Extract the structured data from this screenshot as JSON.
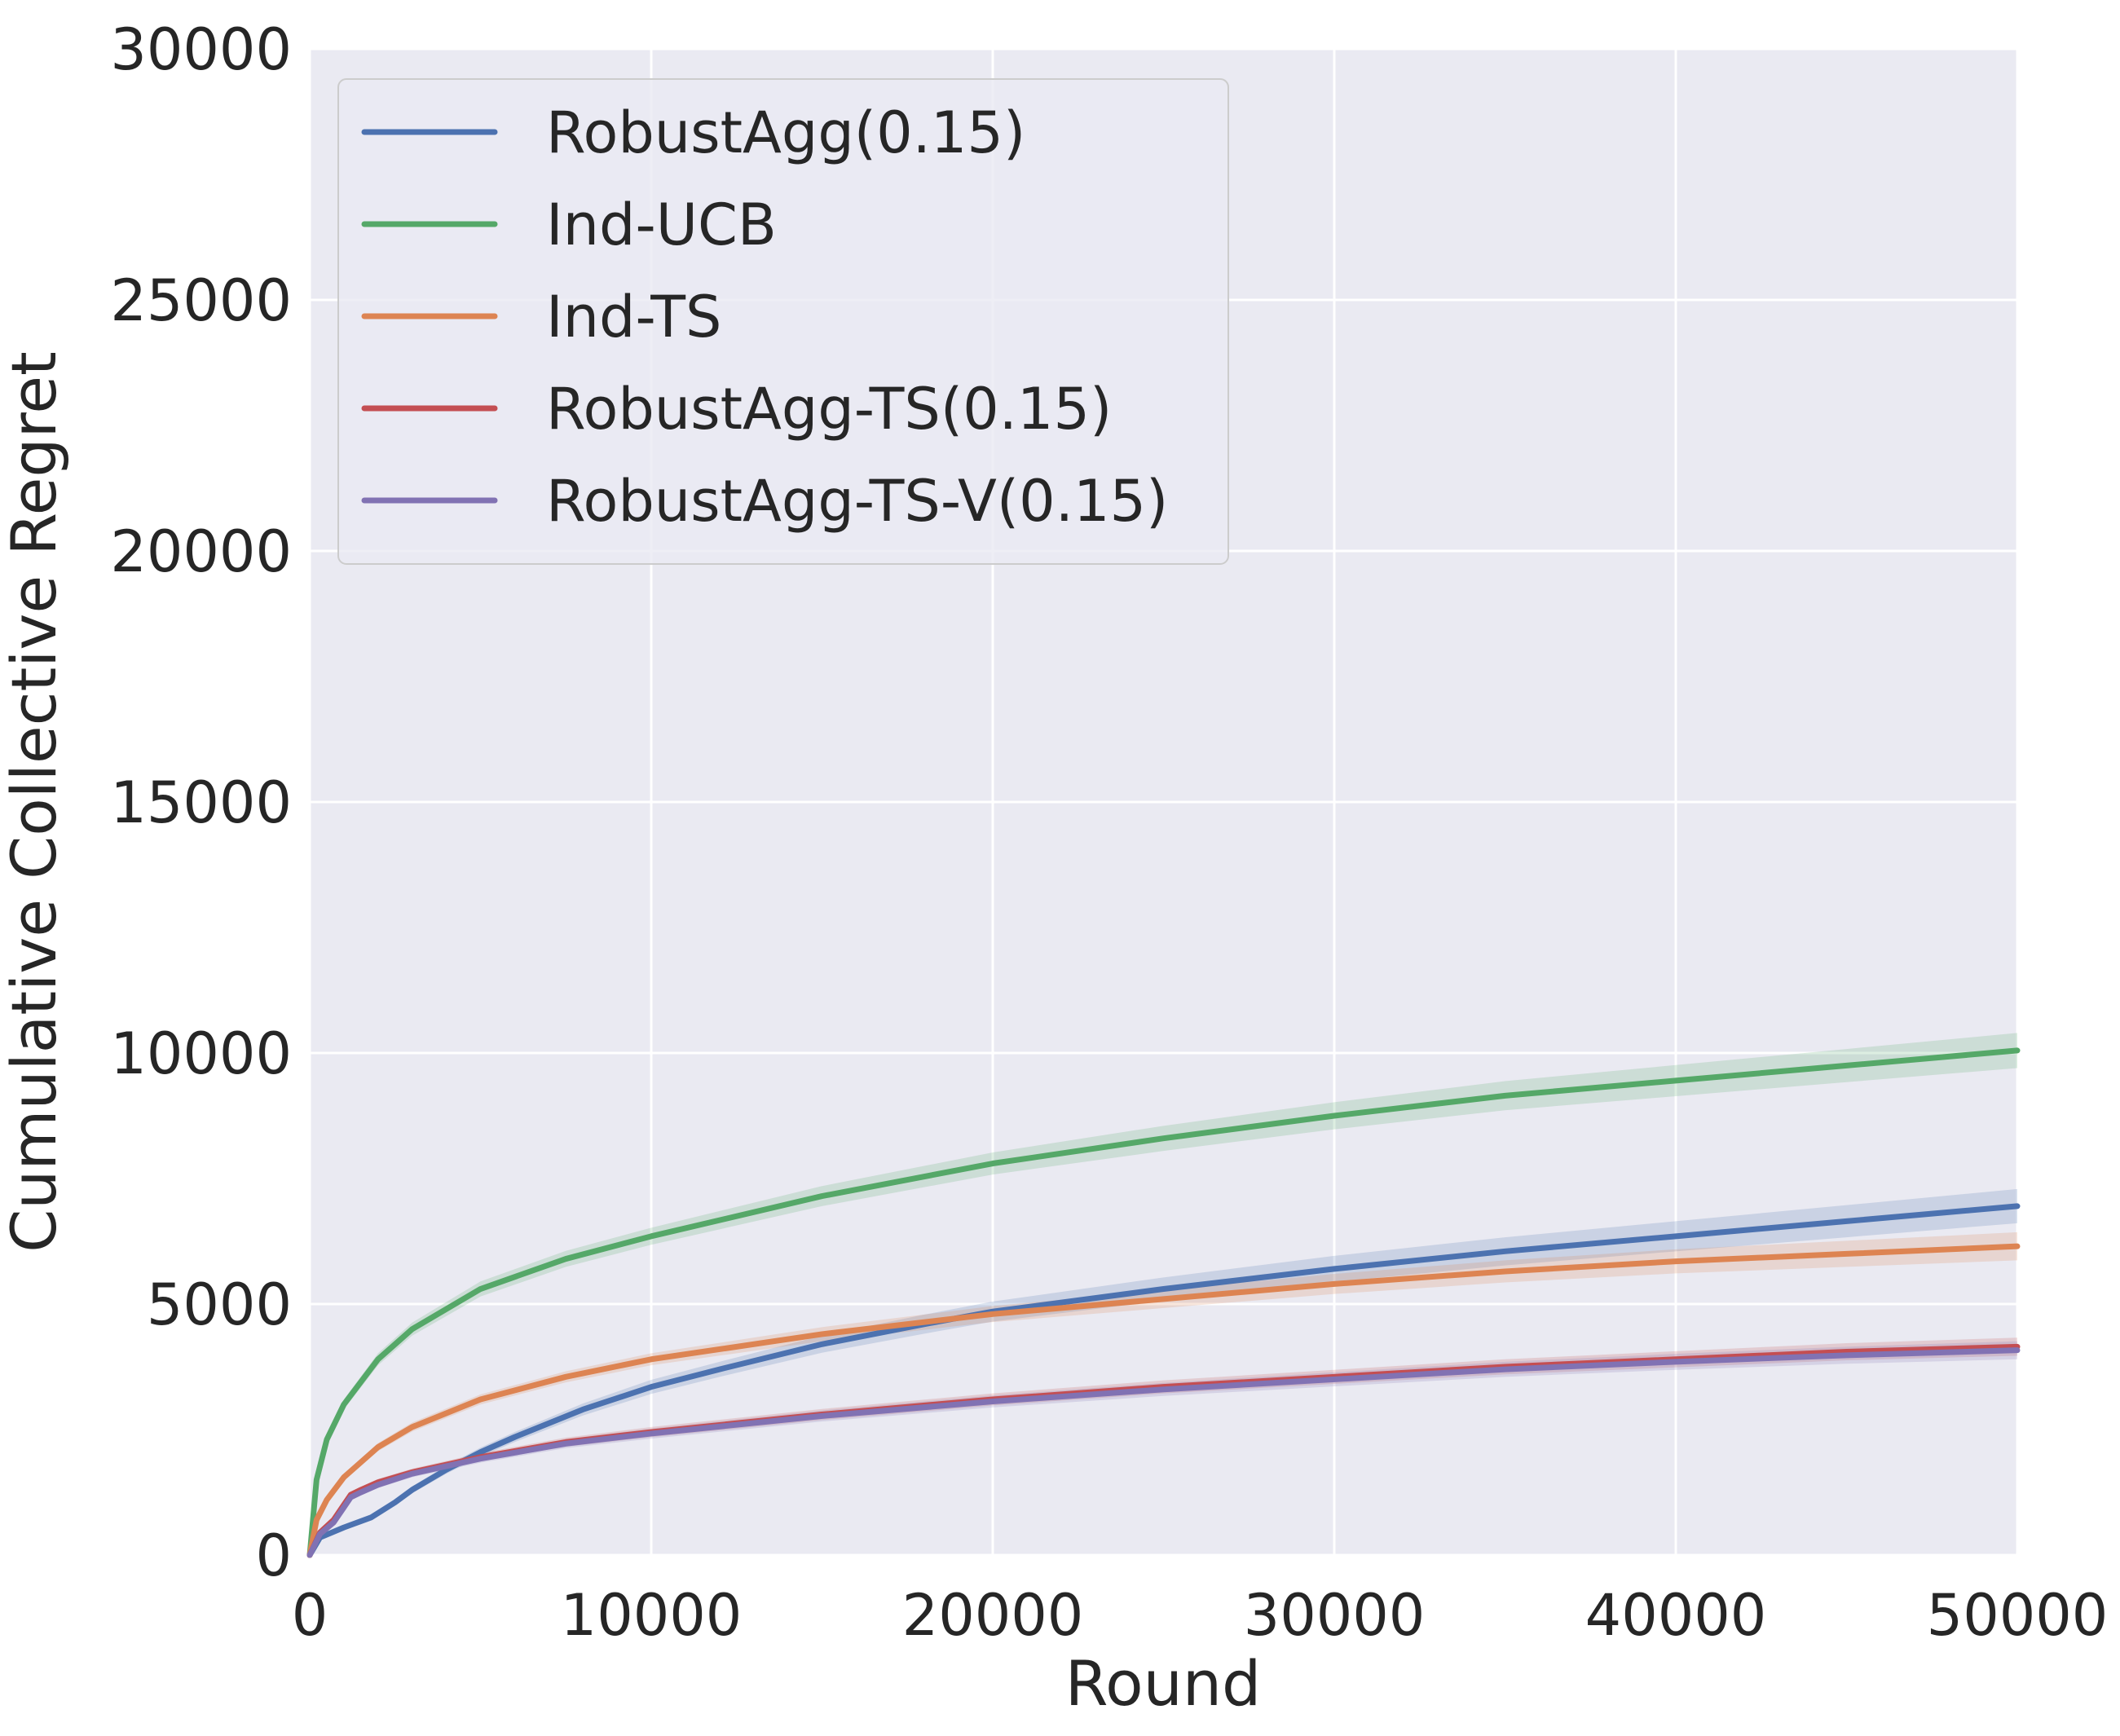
{
  "colors": {
    "background": "#eaeaf2",
    "grid": "#ffffff"
  },
  "chart_data": {
    "type": "line",
    "title": "",
    "xlabel": "Round",
    "ylabel": "Cumulative Collective Regret",
    "xlim": [
      0,
      50000
    ],
    "ylim": [
      0,
      30000
    ],
    "xticks": [
      0,
      10000,
      20000,
      30000,
      40000,
      50000
    ],
    "yticks": [
      0,
      5000,
      10000,
      15000,
      20000,
      25000,
      30000
    ],
    "x_tick_labels": [
      "0",
      "10000",
      "20000",
      "30000",
      "40000",
      "50000"
    ],
    "y_tick_labels": [
      "0",
      "5000",
      "10000",
      "15000",
      "20000",
      "25000",
      "30000"
    ],
    "grid": true,
    "legend_position": "top-left",
    "series": [
      {
        "name": "RobustAgg(0.15)",
        "color": "#4c72b0",
        "x": [
          0,
          300,
          1000,
          1800,
          2500,
          3000,
          4000,
          5000,
          6000,
          8000,
          10000,
          12000,
          15000,
          18000,
          20000,
          25000,
          30000,
          35000,
          40000,
          45000,
          50000
        ],
        "y": [
          0,
          350,
          550,
          750,
          1050,
          1300,
          1700,
          2050,
          2350,
          2900,
          3350,
          3700,
          4200,
          4600,
          4850,
          5300,
          5700,
          6050,
          6350,
          6650,
          6950
        ],
        "band": [
          0,
          20,
          30,
          50,
          60,
          70,
          80,
          90,
          100,
          120,
          140,
          150,
          170,
          190,
          200,
          230,
          260,
          280,
          300,
          320,
          340
        ]
      },
      {
        "name": "Ind-UCB",
        "color": "#55a868",
        "x": [
          0,
          200,
          500,
          1000,
          2000,
          3000,
          5000,
          7500,
          10000,
          15000,
          20000,
          25000,
          30000,
          35000,
          40000,
          45000,
          50000
        ],
        "y": [
          0,
          1500,
          2300,
          3000,
          3900,
          4500,
          5300,
          5900,
          6350,
          7150,
          7800,
          8300,
          8750,
          9150,
          9450,
          9750,
          10050
        ],
        "band": [
          0,
          60,
          80,
          100,
          120,
          130,
          150,
          160,
          170,
          200,
          220,
          250,
          270,
          290,
          310,
          330,
          350
        ]
      },
      {
        "name": "Ind-TS",
        "color": "#dd8452",
        "x": [
          0,
          200,
          500,
          1000,
          2000,
          3000,
          5000,
          7500,
          10000,
          15000,
          20000,
          25000,
          30000,
          35000,
          40000,
          45000,
          50000
        ],
        "y": [
          0,
          700,
          1100,
          1550,
          2150,
          2550,
          3100,
          3550,
          3900,
          4400,
          4800,
          5100,
          5400,
          5650,
          5850,
          6000,
          6150
        ],
        "band": [
          0,
          40,
          50,
          70,
          80,
          90,
          100,
          110,
          120,
          140,
          160,
          180,
          200,
          220,
          240,
          260,
          280
        ]
      },
      {
        "name": "RobustAgg-TS(0.15)",
        "color": "#c44e52",
        "x": [
          0,
          300,
          700,
          1000,
          1200,
          1500,
          2000,
          3000,
          5000,
          7500,
          10000,
          15000,
          20000,
          25000,
          30000,
          35000,
          40000,
          45000,
          50000
        ],
        "y": [
          0,
          450,
          700,
          1000,
          1200,
          1300,
          1450,
          1650,
          1950,
          2250,
          2450,
          2800,
          3100,
          3350,
          3550,
          3750,
          3900,
          4050,
          4150
        ],
        "band": [
          0,
          30,
          40,
          50,
          55,
          60,
          65,
          70,
          80,
          90,
          100,
          110,
          120,
          130,
          140,
          150,
          160,
          170,
          180
        ]
      },
      {
        "name": "RobustAgg-TS-V(0.15)",
        "color": "#8172b3",
        "x": [
          0,
          300,
          700,
          1000,
          1200,
          1500,
          2000,
          3000,
          5000,
          7500,
          10000,
          15000,
          20000,
          25000,
          30000,
          35000,
          40000,
          45000,
          50000
        ],
        "y": [
          0,
          420,
          650,
          950,
          1150,
          1250,
          1400,
          1620,
          1920,
          2220,
          2420,
          2770,
          3060,
          3300,
          3500,
          3700,
          3850,
          3980,
          4080
        ],
        "band": [
          0,
          30,
          40,
          50,
          55,
          60,
          65,
          70,
          80,
          90,
          100,
          110,
          120,
          130,
          140,
          150,
          160,
          170,
          180
        ]
      }
    ]
  }
}
